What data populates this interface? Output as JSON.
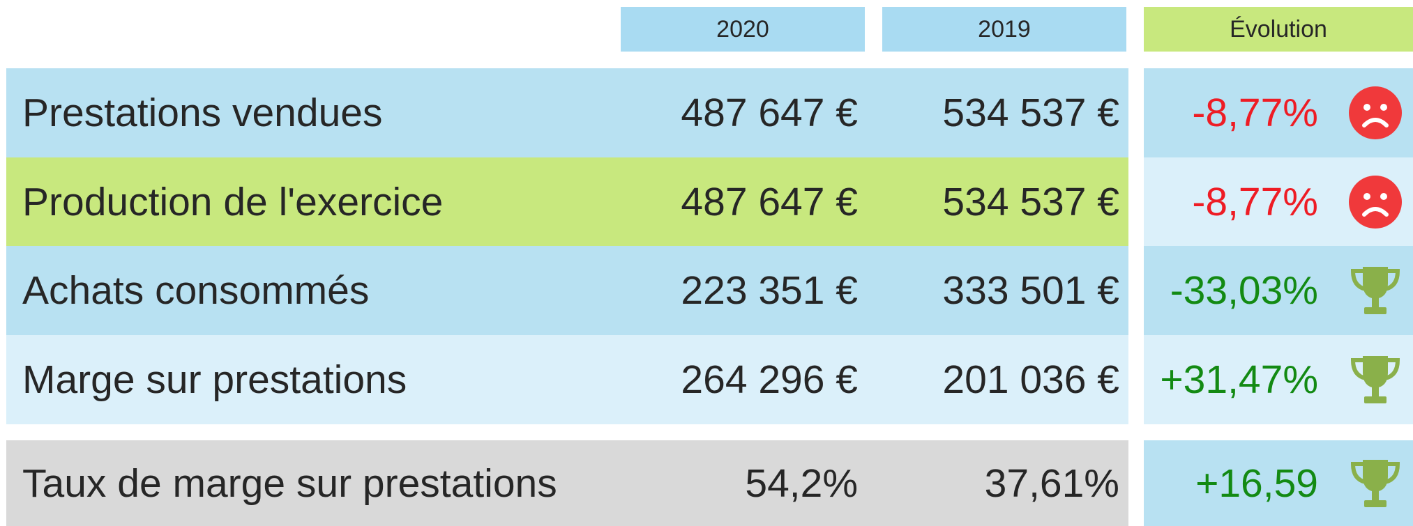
{
  "header": {
    "columns": [
      "2020",
      "2019",
      "Évolution"
    ]
  },
  "table": {
    "rows": [
      [
        "Prestations vendues",
        "487 647 €",
        "534 537 €",
        "-8,77%"
      ],
      [
        "Production de l'exercice",
        "487 647 €",
        "534 537 €",
        "-8,77%"
      ],
      [
        "Achats consommés",
        "223 351 €",
        "333 501 €",
        "-33,03%"
      ],
      [
        "Marge sur prestations",
        "264 296 €",
        "201 036 €",
        "+31,47%"
      ],
      [
        "Taux de marge sur prestations",
        "54,2%",
        "37,61%",
        "+16,59"
      ]
    ]
  }
}
